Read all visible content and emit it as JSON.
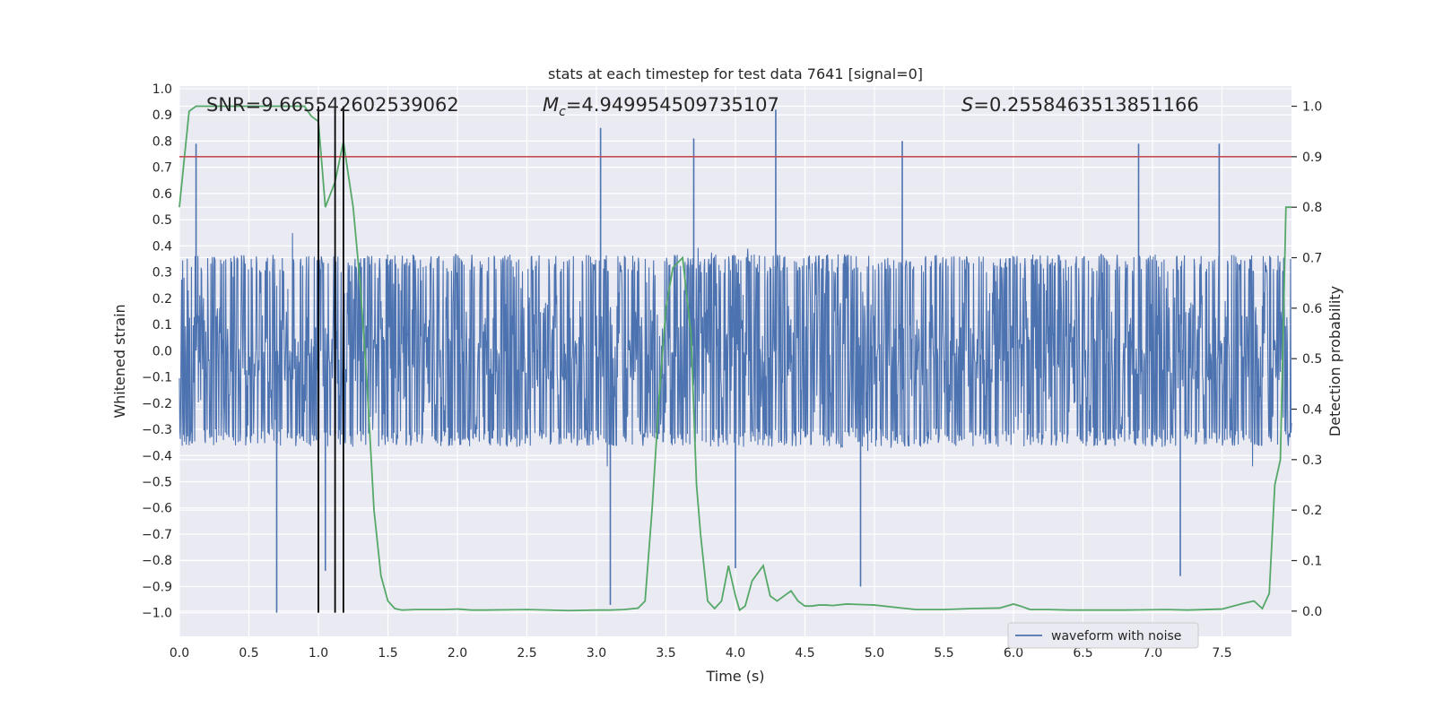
{
  "chart_data": {
    "type": "line",
    "title": "stats at each timestep for test data 7641 [signal=0]",
    "xlabel": "Time (s)",
    "ylabel_left": "Whitened strain",
    "ylabel_right": "Detection probability",
    "xlim": [
      0.0,
      8.0
    ],
    "ylim_left": [
      -1.09,
      1.01
    ],
    "ylim_right": [
      -0.05,
      1.04
    ],
    "xticks": [
      0.0,
      0.5,
      1.0,
      1.5,
      2.0,
      2.5,
      3.0,
      3.5,
      4.0,
      4.5,
      5.0,
      5.5,
      6.0,
      6.5,
      7.0,
      7.5
    ],
    "xtick_labels": [
      "0.0",
      "0.5",
      "1.0",
      "1.5",
      "2.0",
      "2.5",
      "3.0",
      "3.5",
      "4.0",
      "4.5",
      "5.0",
      "5.5",
      "6.0",
      "6.5",
      "7.0",
      "7.5"
    ],
    "yticks_left": [
      1.0,
      0.9,
      0.8,
      0.7,
      0.6,
      0.5,
      0.4,
      0.3,
      0.2,
      0.1,
      0.0,
      -0.1,
      -0.2,
      -0.3,
      -0.4,
      -0.5,
      -0.6,
      -0.7,
      -0.8,
      -0.9,
      -1.0
    ],
    "ytick_labels_left": [
      "1.0",
      "0.9",
      "0.8",
      "0.7",
      "0.6",
      "0.5",
      "0.4",
      "0.3",
      "0.2",
      "0.1",
      "0.0",
      "−0.1",
      "−0.2",
      "−0.3",
      "−0.4",
      "−0.5",
      "−0.6",
      "−0.7",
      "−0.8",
      "−0.9",
      "−1.0"
    ],
    "yticks_right": [
      1.0,
      0.9,
      0.8,
      0.7,
      0.6,
      0.5,
      0.4,
      0.3,
      0.2,
      0.1,
      0.0
    ],
    "ytick_labels_right": [
      "1.0",
      "0.9",
      "0.8",
      "0.7",
      "0.6",
      "0.5",
      "0.4",
      "0.3",
      "0.2",
      "0.1",
      "0.0"
    ],
    "annotations": {
      "snr": "SNR=9.665542602539062",
      "mc_symbol": "M",
      "mc_sub": "c",
      "mc_value": "=4.949954509735107",
      "s_symbol": "S",
      "s_value": "=0.2558463513851166"
    },
    "legend": {
      "label": "waveform with noise",
      "position": "lower-right"
    },
    "threshold_line": {
      "axis": "right",
      "y": 0.9,
      "color": "#c44e52"
    },
    "vertical_lines": [
      1.0,
      1.12,
      1.18
    ],
    "waveform": {
      "name": "waveform with noise",
      "color": "#4c72b0",
      "core_amplitude": 0.35,
      "notable_spikes": [
        {
          "x": 0.12,
          "y": 0.79
        },
        {
          "x": 0.7,
          "y": -1.0
        },
        {
          "x": 1.05,
          "y": -0.84
        },
        {
          "x": 1.18,
          "y": 0.8
        },
        {
          "x": 3.03,
          "y": 0.85
        },
        {
          "x": 3.1,
          "y": -0.97
        },
        {
          "x": 3.7,
          "y": 0.81
        },
        {
          "x": 4.0,
          "y": -0.83
        },
        {
          "x": 4.29,
          "y": 0.92
        },
        {
          "x": 4.9,
          "y": -0.9
        },
        {
          "x": 5.2,
          "y": 0.8
        },
        {
          "x": 6.9,
          "y": 0.79
        },
        {
          "x": 7.2,
          "y": -0.86
        },
        {
          "x": 7.48,
          "y": 0.79
        }
      ]
    },
    "series": [
      {
        "name": "detection probability",
        "axis": "right",
        "color": "#55a868",
        "x": [
          0.0,
          0.07,
          0.12,
          0.5,
          0.9,
          0.95,
          1.0,
          1.05,
          1.12,
          1.18,
          1.25,
          1.3,
          1.35,
          1.4,
          1.45,
          1.5,
          1.55,
          1.6,
          1.7,
          1.8,
          1.9,
          2.0,
          2.1,
          2.2,
          2.5,
          2.8,
          3.0,
          3.1,
          3.2,
          3.3,
          3.35,
          3.4,
          3.45,
          3.5,
          3.55,
          3.62,
          3.68,
          3.72,
          3.75,
          3.8,
          3.85,
          3.9,
          3.95,
          4.0,
          4.03,
          4.07,
          4.12,
          4.2,
          4.25,
          4.3,
          4.35,
          4.4,
          4.45,
          4.5,
          4.55,
          4.6,
          4.65,
          4.7,
          4.8,
          4.9,
          5.0,
          5.2,
          5.3,
          5.5,
          5.7,
          5.9,
          6.0,
          6.05,
          6.12,
          6.25,
          6.4,
          6.8,
          7.1,
          7.25,
          7.5,
          7.65,
          7.73,
          7.79,
          7.84,
          7.88,
          7.92,
          7.96,
          8.0
        ],
        "y": [
          0.8,
          0.99,
          1.0,
          1.0,
          1.0,
          0.98,
          0.97,
          0.8,
          0.85,
          0.93,
          0.8,
          0.65,
          0.45,
          0.2,
          0.07,
          0.02,
          0.005,
          0.002,
          0.003,
          0.003,
          0.003,
          0.004,
          0.002,
          0.002,
          0.003,
          0.001,
          0.002,
          0.002,
          0.003,
          0.006,
          0.02,
          0.2,
          0.42,
          0.6,
          0.68,
          0.7,
          0.55,
          0.25,
          0.15,
          0.02,
          0.005,
          0.02,
          0.09,
          0.03,
          0.002,
          0.01,
          0.06,
          0.09,
          0.03,
          0.02,
          0.03,
          0.04,
          0.02,
          0.01,
          0.01,
          0.012,
          0.012,
          0.011,
          0.014,
          0.013,
          0.012,
          0.006,
          0.003,
          0.003,
          0.005,
          0.006,
          0.014,
          0.01,
          0.003,
          0.003,
          0.002,
          0.002,
          0.003,
          0.002,
          0.004,
          0.015,
          0.02,
          0.005,
          0.035,
          0.25,
          0.3,
          0.8,
          0.8
        ]
      }
    ]
  }
}
